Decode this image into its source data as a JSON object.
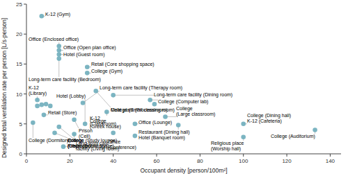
{
  "chart_data": {
    "type": "scatter",
    "xlabel": "Occupant density [person/100m²]",
    "ylabel": "Designed total ventilation rate per person [L/s·person]",
    "color": "#6aabba",
    "xlim": [
      0,
      145
    ],
    "ylim": [
      0,
      25
    ],
    "xticks": [
      0,
      20,
      40,
      60,
      80,
      100,
      120,
      140
    ],
    "yticks": [
      0,
      5,
      10,
      15,
      20,
      25
    ],
    "x": [
      7,
      15,
      15,
      15,
      15,
      28,
      28,
      26,
      32,
      40,
      5,
      5,
      7,
      9,
      11,
      57,
      59,
      37,
      8,
      64,
      22,
      27,
      3,
      70,
      100,
      50,
      133,
      15,
      13,
      100,
      22,
      40,
      50,
      17
    ],
    "values": [
      23.0,
      18.0,
      17.3,
      16.6,
      15.9,
      14.5,
      13.5,
      8.5,
      10.5,
      9.8,
      9.0,
      8.0,
      8.2,
      8.3,
      8.0,
      9.0,
      8.3,
      7.0,
      6.5,
      6.2,
      5.7,
      5.0,
      5.2,
      4.8,
      5.0,
      5.0,
      4.0,
      4.5,
      3.5,
      2.8,
      3.3,
      3.5,
      3.0,
      1.2
    ],
    "annotations": [
      "K-12 (Gym)",
      "Office (Enclosed office)",
      "Office (Open plan office)",
      "Hotel (Guest room)",
      "Long-term care facility (Bedroom)",
      "Retail (Core shopping space)",
      "College (Gym)",
      "Long-term care facility (Therapy room)",
      "Meat plant (Processing room)",
      "Long-term care facility (Dining room)",
      "K-12\n(Library)",
      null,
      null,
      null,
      null,
      "College (Computer lab)",
      "College (Small classroom)",
      "K-12\n(Classroom)",
      "Retail (Store)",
      "College\n(Large classroom)",
      "Prison\n(Cell)",
      "Hotel (Lobby)",
      "College (Dormitory)",
      "Restaurant (Dining hall)\nHotel (Banquet room)",
      "College (Dining hall)\nK-12 (Cafeteria)",
      "Office (Lounge)",
      "College (Auditorium)",
      "Long-term care\nfacility (Living room)",
      "College (Study lounge)\nPrison (Dormitory)",
      "Religious place\n(Worship hall)",
      "Prison\n(Dayroom)",
      "College\n(Greek house)",
      "Office\n(Conference)",
      "College\n(Library public space)"
    ]
  }
}
